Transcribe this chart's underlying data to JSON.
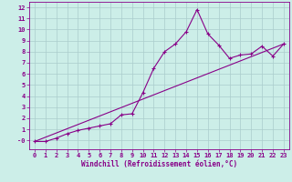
{
  "xlabel": "Windchill (Refroidissement éolien,°C)",
  "ylabel": "",
  "bg_color": "#cceee8",
  "line_color": "#880088",
  "grid_color": "#aacccc",
  "xlim": [
    -0.5,
    23.5
  ],
  "ylim": [
    -0.8,
    12.5
  ],
  "xticks": [
    0,
    1,
    2,
    3,
    4,
    5,
    6,
    7,
    8,
    9,
    10,
    11,
    12,
    13,
    14,
    15,
    16,
    17,
    18,
    19,
    20,
    21,
    22,
    23
  ],
  "yticks": [
    0,
    1,
    2,
    3,
    4,
    5,
    6,
    7,
    8,
    9,
    10,
    11,
    12
  ],
  "ytick_labels": [
    "-0",
    "1",
    "2",
    "3",
    "4",
    "5",
    "6",
    "7",
    "8",
    "9",
    "10",
    "11",
    "12"
  ],
  "curve1_x": [
    0,
    1,
    2,
    3,
    4,
    5,
    6,
    7,
    8,
    9,
    10,
    11,
    12,
    13,
    14,
    15,
    16,
    17,
    18,
    19,
    20,
    21,
    22,
    23
  ],
  "curve1_y": [
    -0.1,
    -0.1,
    0.2,
    0.6,
    0.9,
    1.1,
    1.3,
    1.5,
    2.3,
    2.4,
    4.3,
    6.5,
    8.0,
    8.7,
    9.8,
    11.8,
    9.6,
    8.6,
    7.4,
    7.7,
    7.8,
    8.5,
    7.6,
    8.7
  ],
  "curve2_x": [
    0,
    23
  ],
  "curve2_y": [
    -0.1,
    8.7
  ],
  "tick_fontsize": 5.0,
  "xlabel_fontsize": 5.5
}
